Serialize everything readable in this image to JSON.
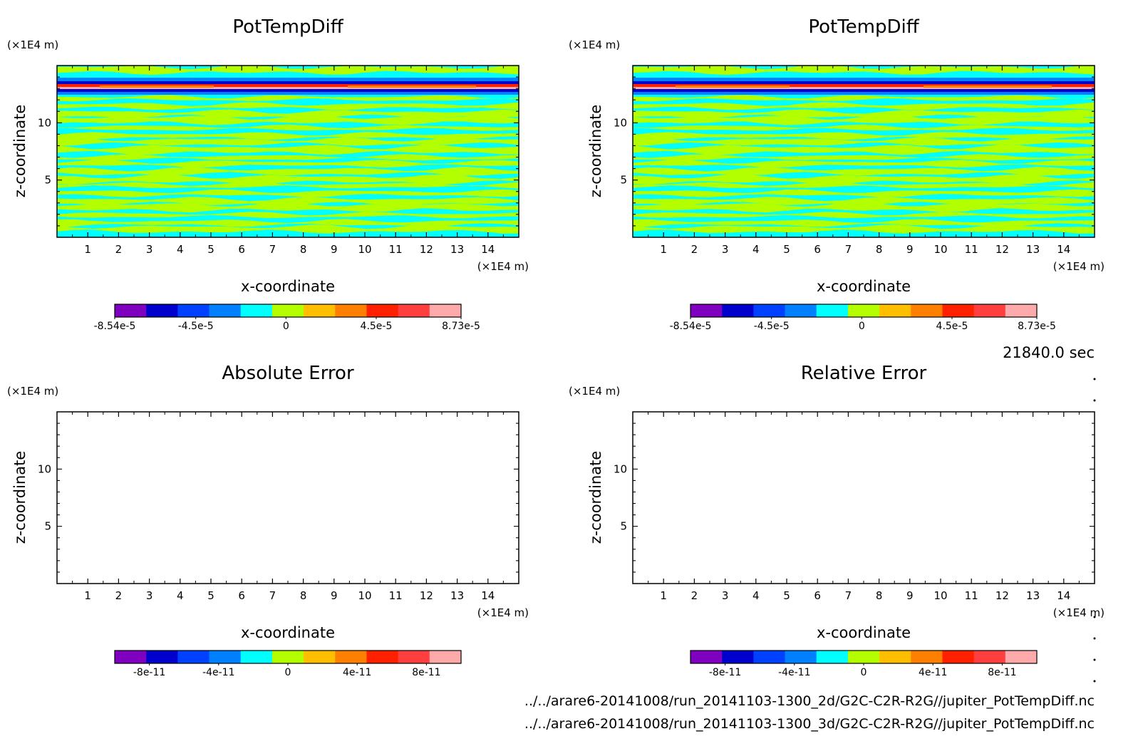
{
  "figure": {
    "time_label": "21840.0 sec",
    "file_paths": [
      "../../arare6-20141008/run_20141103-1300_2d/G2C-C2R-R2G//jupiter_PotTempDiff.nc",
      "../../arare6-20141008/run_20141103-1300_3d/G2C-C2R-R2G//jupiter_PotTempDiff.nc"
    ]
  },
  "palette": [
    "#7f00bf",
    "#0000cd",
    "#0040ff",
    "#0080ff",
    "#00ffff",
    "#b3ff00",
    "#ffbf00",
    "#ff7f00",
    "#ff2000",
    "#ff3f3f",
    "#ffaaaa"
  ],
  "chart_data": [
    {
      "type": "heatmap",
      "title": "PotTempDiff",
      "xlabel": "x-coordinate",
      "ylabel": "z-coordinate",
      "x_unit": "(×1E4 m)",
      "y_unit": "(×1E4 m)",
      "xlim": [
        0,
        15
      ],
      "ylim": [
        0,
        15
      ],
      "x_ticks": [
        "1",
        "2",
        "3",
        "4",
        "5",
        "6",
        "7",
        "8",
        "9",
        "10",
        "11",
        "12",
        "13",
        "14"
      ],
      "y_ticks": [
        "5",
        "10"
      ],
      "field": "stratified",
      "colorbar": {
        "min": -8.54e-05,
        "max": 8.73e-05,
        "tick_labels": [
          "-8.54e-5",
          "-4.5e-5",
          "0",
          "4.5e-5",
          "8.73e-5"
        ]
      }
    },
    {
      "type": "heatmap",
      "title": "PotTempDiff",
      "xlabel": "x-coordinate",
      "ylabel": "z-coordinate",
      "x_unit": "(×1E4 m)",
      "y_unit": "(×1E4 m)",
      "xlim": [
        0,
        15
      ],
      "ylim": [
        0,
        15
      ],
      "x_ticks": [
        "1",
        "2",
        "3",
        "4",
        "5",
        "6",
        "7",
        "8",
        "9",
        "10",
        "11",
        "12",
        "13",
        "14"
      ],
      "y_ticks": [
        "5",
        "10"
      ],
      "field": "stratified",
      "colorbar": {
        "min": -8.54e-05,
        "max": 8.73e-05,
        "tick_labels": [
          "-8.54e-5",
          "-4.5e-5",
          "0",
          "4.5e-5",
          "8.73e-5"
        ]
      }
    },
    {
      "type": "heatmap",
      "title": "Absolute Error",
      "xlabel": "x-coordinate",
      "ylabel": "z-coordinate",
      "x_unit": "(×1E4 m)",
      "y_unit": "(×1E4 m)",
      "xlim": [
        0,
        15
      ],
      "ylim": [
        0,
        15
      ],
      "x_ticks": [
        "1",
        "2",
        "3",
        "4",
        "5",
        "6",
        "7",
        "8",
        "9",
        "10",
        "11",
        "12",
        "13",
        "14"
      ],
      "y_ticks": [
        "5",
        "10"
      ],
      "field": "empty",
      "colorbar": {
        "min": -1e-10,
        "max": 1e-10,
        "tick_labels": [
          "-8e-11",
          "-4e-11",
          "0",
          "4e-11",
          "8e-11"
        ]
      }
    },
    {
      "type": "heatmap",
      "title": "Relative Error",
      "xlabel": "x-coordinate",
      "ylabel": "z-coordinate",
      "x_unit": "(×1E4 m)",
      "y_unit": "(×1E4 m)",
      "xlim": [
        0,
        15
      ],
      "ylim": [
        0,
        15
      ],
      "x_ticks": [
        "1",
        "2",
        "3",
        "4",
        "5",
        "6",
        "7",
        "8",
        "9",
        "10",
        "11",
        "12",
        "13",
        "14"
      ],
      "y_ticks": [
        "5",
        "10"
      ],
      "field": "empty",
      "colorbar": {
        "min": -1e-10,
        "max": 1e-10,
        "tick_labels": [
          "-8e-11",
          "-4e-11",
          "0",
          "4e-11",
          "8e-11"
        ]
      }
    }
  ]
}
